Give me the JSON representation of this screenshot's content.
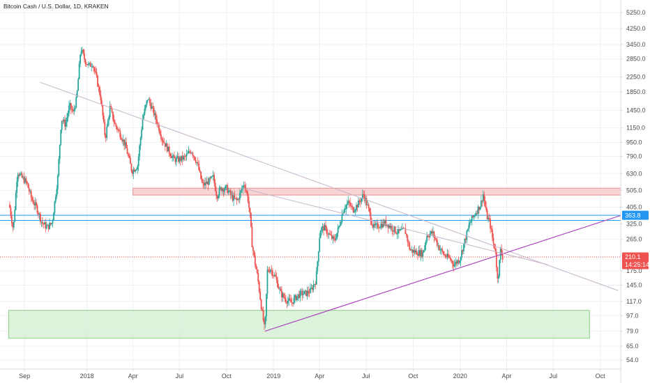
{
  "chart_data": {
    "type": "candlestick",
    "title": "Bitcoin Cash / U.S. Dollar, 1D, KRAKEN",
    "y_scale": "log",
    "ylim": [
      48,
      6200
    ],
    "y_ticks": [
      5250,
      4250,
      3450,
      2850,
      2250,
      1850,
      1450,
      1150,
      950,
      790,
      630,
      505,
      405,
      325,
      265,
      210,
      175,
      145,
      117,
      97,
      79,
      65,
      54
    ],
    "y_tick_labels": [
      "5250.0",
      "4250.0",
      "3450.0",
      "2850.0",
      "2250.0",
      "1850.0",
      "1450.0",
      "1150.0",
      "950.0",
      "790.0",
      "630.0",
      "505.0",
      "405.0",
      "325.0",
      "265.0",
      "175.0",
      "145.0",
      "117.0",
      "97.0",
      "79.0",
      "65.0",
      "54.0"
    ],
    "x_labels": [
      {
        "label": "Sep",
        "date": "2017-09-01"
      },
      {
        "label": "2018",
        "date": "2018-01-01"
      },
      {
        "label": "Apr",
        "date": "2018-04-01"
      },
      {
        "label": "Jul",
        "date": "2018-07-01"
      },
      {
        "label": "Oct",
        "date": "2018-10-01"
      },
      {
        "label": "2019",
        "date": "2019-01-01"
      },
      {
        "label": "Apr",
        "date": "2019-04-01"
      },
      {
        "label": "Jul",
        "date": "2019-07-01"
      },
      {
        "label": "Oct",
        "date": "2019-10-01"
      },
      {
        "label": "2020",
        "date": "2020-01-01"
      },
      {
        "label": "Apr",
        "date": "2020-04-01"
      },
      {
        "label": "Jul",
        "date": "2020-07-01"
      },
      {
        "label": "Oct",
        "date": "2020-10-01"
      }
    ],
    "xlim": [
      "2017-07-15",
      "2020-11-10"
    ],
    "price_path": [
      [
        "2017-08-02",
        420
      ],
      [
        "2017-08-10",
        300
      ],
      [
        "2017-08-18",
        650
      ],
      [
        "2017-08-26",
        600
      ],
      [
        "2017-09-05",
        560
      ],
      [
        "2017-09-15",
        450
      ],
      [
        "2017-09-25",
        400
      ],
      [
        "2017-10-05",
        330
      ],
      [
        "2017-10-15",
        310
      ],
      [
        "2017-10-25",
        330
      ],
      [
        "2017-11-05",
        600
      ],
      [
        "2017-11-12",
        1300
      ],
      [
        "2017-11-20",
        1200
      ],
      [
        "2017-11-28",
        1550
      ],
      [
        "2017-12-05",
        1400
      ],
      [
        "2017-12-12",
        1700
      ],
      [
        "2017-12-20",
        3300
      ],
      [
        "2017-12-28",
        2800
      ],
      [
        "2018-01-05",
        2600
      ],
      [
        "2018-01-12",
        2700
      ],
      [
        "2018-01-20",
        2200
      ],
      [
        "2018-01-28",
        1700
      ],
      [
        "2018-02-06",
        1000
      ],
      [
        "2018-02-15",
        1500
      ],
      [
        "2018-02-25",
        1200
      ],
      [
        "2018-03-08",
        1050
      ],
      [
        "2018-03-18",
        900
      ],
      [
        "2018-03-30",
        650
      ],
      [
        "2018-04-10",
        700
      ],
      [
        "2018-04-20",
        1300
      ],
      [
        "2018-04-30",
        1700
      ],
      [
        "2018-05-08",
        1500
      ],
      [
        "2018-05-18",
        1250
      ],
      [
        "2018-05-28",
        1000
      ],
      [
        "2018-06-10",
        850
      ],
      [
        "2018-06-20",
        760
      ],
      [
        "2018-07-01",
        760
      ],
      [
        "2018-07-12",
        780
      ],
      [
        "2018-07-24",
        860
      ],
      [
        "2018-08-05",
        720
      ],
      [
        "2018-08-15",
        540
      ],
      [
        "2018-08-25",
        560
      ],
      [
        "2018-09-05",
        600
      ],
      [
        "2018-09-12",
        470
      ],
      [
        "2018-09-20",
        520
      ],
      [
        "2018-10-01",
        520
      ],
      [
        "2018-10-12",
        460
      ],
      [
        "2018-10-22",
        440
      ],
      [
        "2018-11-05",
        560
      ],
      [
        "2018-11-12",
        450
      ],
      [
        "2018-11-16",
        360
      ],
      [
        "2018-11-20",
        250
      ],
      [
        "2018-11-25",
        200
      ],
      [
        "2018-12-01",
        160
      ],
      [
        "2018-12-08",
        110
      ],
      [
        "2018-12-15",
        79
      ],
      [
        "2018-12-20",
        175
      ],
      [
        "2018-12-26",
        180
      ],
      [
        "2019-01-05",
        160
      ],
      [
        "2019-01-15",
        130
      ],
      [
        "2019-01-25",
        120
      ],
      [
        "2019-02-05",
        115
      ],
      [
        "2019-02-15",
        125
      ],
      [
        "2019-02-25",
        130
      ],
      [
        "2019-03-05",
        130
      ],
      [
        "2019-03-15",
        135
      ],
      [
        "2019-03-25",
        155
      ],
      [
        "2019-04-02",
        300
      ],
      [
        "2019-04-10",
        310
      ],
      [
        "2019-04-20",
        280
      ],
      [
        "2019-04-30",
        260
      ],
      [
        "2019-05-10",
        320
      ],
      [
        "2019-05-18",
        400
      ],
      [
        "2019-05-28",
        430
      ],
      [
        "2019-06-05",
        390
      ],
      [
        "2019-06-15",
        420
      ],
      [
        "2019-06-26",
        480
      ],
      [
        "2019-07-05",
        400
      ],
      [
        "2019-07-15",
        310
      ],
      [
        "2019-07-28",
        320
      ],
      [
        "2019-08-08",
        330
      ],
      [
        "2019-08-20",
        310
      ],
      [
        "2019-09-01",
        290
      ],
      [
        "2019-09-15",
        300
      ],
      [
        "2019-09-25",
        230
      ],
      [
        "2019-10-05",
        225
      ],
      [
        "2019-10-20",
        220
      ],
      [
        "2019-10-28",
        280
      ],
      [
        "2019-11-08",
        290
      ],
      [
        "2019-11-20",
        240
      ],
      [
        "2019-12-01",
        215
      ],
      [
        "2019-12-12",
        205
      ],
      [
        "2019-12-20",
        190
      ],
      [
        "2019-12-31",
        205
      ],
      [
        "2020-01-10",
        260
      ],
      [
        "2020-01-20",
        330
      ],
      [
        "2020-02-01",
        380
      ],
      [
        "2020-02-10",
        420
      ],
      [
        "2020-02-15",
        480
      ],
      [
        "2020-02-22",
        360
      ],
      [
        "2020-02-28",
        330
      ],
      [
        "2020-03-06",
        250
      ],
      [
        "2020-03-10",
        230
      ],
      [
        "2020-03-13",
        160
      ],
      [
        "2020-03-16",
        170
      ],
      [
        "2020-03-20",
        230
      ],
      [
        "2020-03-24",
        210
      ]
    ],
    "horizontal_lines": [
      {
        "price": 363.8,
        "color": "#2196f3"
      },
      {
        "price": 340,
        "color": "#2196f3"
      },
      {
        "price": 210.1,
        "color": "#ef5350"
      }
    ],
    "trend_lines": [
      {
        "from": [
          "2017-10-01",
          2100
        ],
        "to": [
          "2020-11-05",
          135
        ],
        "color": "#c7b3c9"
      },
      {
        "from": [
          "2018-12-15",
          79
        ],
        "to": [
          "2020-11-10",
          363
        ],
        "color": "#ab47bc"
      },
      {
        "from": [
          "2018-11-01",
          520
        ],
        "to": [
          "2020-06-20",
          190
        ],
        "color": "#c7b3c9"
      }
    ],
    "zones": [
      {
        "from": "2018-04-01",
        "to": "2020-11-10",
        "low": 475,
        "high": 520,
        "color": "#f7c9c9",
        "stroke": "#e98e8e"
      },
      {
        "from": "2017-08-01",
        "to": "2020-09-10",
        "low": 72,
        "high": 104,
        "color": "#d5f0d3",
        "stroke": "#8bcf86"
      }
    ],
    "price_badges": [
      {
        "text": "363.8",
        "price": 363.8,
        "color": "#2196f3"
      },
      {
        "text": "210.1",
        "price": 210.1,
        "color": "#ef5350"
      },
      {
        "text": "14:25:14",
        "price": 190,
        "color": "#ef5350"
      }
    ],
    "colors": {
      "up": "#26a69a",
      "down": "#ef5350"
    }
  }
}
